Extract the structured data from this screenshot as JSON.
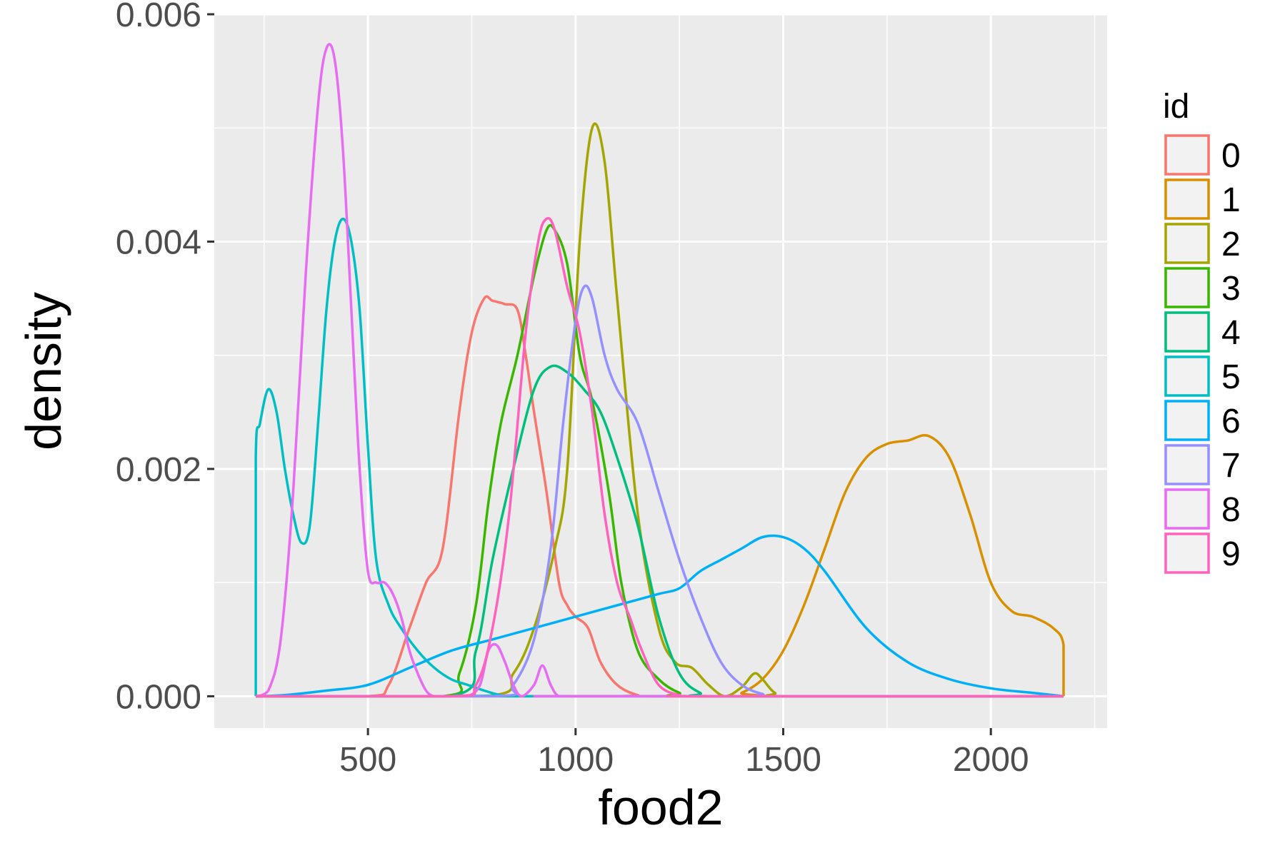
{
  "chart_data": {
    "type": "line",
    "title": "",
    "xlabel": "food2",
    "ylabel": "density",
    "xlim": [
      130,
      2280
    ],
    "ylim": [
      -0.00028,
      0.006
    ],
    "xticks": [
      500,
      1000,
      1500,
      2000
    ],
    "xtick_labels": [
      "500",
      "1000",
      "1500",
      "2000"
    ],
    "yticks": [
      0.0,
      0.002,
      0.004,
      0.006
    ],
    "ytick_labels": [
      "0.000",
      "0.002",
      "0.004",
      "0.006"
    ],
    "grid": true,
    "legend_title": "id",
    "legend_position": "right",
    "series": [
      {
        "name": "0",
        "color": "#F8766D",
        "x": [
          230,
          500,
          550,
          600,
          640,
          680,
          720,
          750,
          780,
          800,
          830,
          860,
          880,
          900,
          930,
          960,
          980,
          1000,
          1030,
          1060,
          1100,
          1150,
          1200,
          2175
        ],
        "y": [
          0,
          0,
          0.0001,
          0.0006,
          0.001,
          0.0013,
          0.0025,
          0.0032,
          0.0035,
          0.00348,
          0.00345,
          0.0034,
          0.003,
          0.0025,
          0.0018,
          0.001,
          0.0008,
          0.0007,
          0.0006,
          0.0003,
          0.0001,
          1e-05,
          0,
          0
        ]
      },
      {
        "name": "1",
        "color": "#D89000",
        "x": [
          230,
          1360,
          1400,
          1450,
          1500,
          1550,
          1600,
          1650,
          1700,
          1750,
          1800,
          1850,
          1900,
          1950,
          2000,
          2050,
          2100,
          2150,
          2175,
          2175
        ],
        "y": [
          0,
          0,
          3e-05,
          0.00015,
          0.0004,
          0.0008,
          0.0013,
          0.0018,
          0.0021,
          0.00222,
          0.00225,
          0.00229,
          0.0021,
          0.0016,
          0.001,
          0.00075,
          0.0007,
          0.0006,
          0.00045,
          0
        ]
      },
      {
        "name": "2",
        "color": "#A3A500",
        "x": [
          230,
          780,
          850,
          900,
          950,
          980,
          1010,
          1040,
          1070,
          1100,
          1150,
          1200,
          1240,
          1280,
          1320,
          1360,
          1400,
          1430,
          1450,
          1480,
          1520,
          2175
        ],
        "y": [
          0,
          0,
          0.0002,
          0.0006,
          0.0013,
          0.002,
          0.004,
          0.005,
          0.0047,
          0.0035,
          0.0016,
          0.0006,
          0.0003,
          0.00025,
          0.0001,
          0,
          8e-05,
          0.0002,
          0.00015,
          3e-05,
          0,
          0
        ]
      },
      {
        "name": "3",
        "color": "#39B600",
        "x": [
          230,
          680,
          720,
          760,
          790,
          820,
          860,
          900,
          930,
          950,
          980,
          1010,
          1040,
          1080,
          1110,
          1150,
          1200,
          1250,
          1300,
          2175
        ],
        "y": [
          0,
          0,
          0.0002,
          0.0008,
          0.0017,
          0.0024,
          0.003,
          0.0037,
          0.0041,
          0.0041,
          0.0038,
          0.003,
          0.0026,
          0.0018,
          0.001,
          0.0004,
          0.00015,
          3e-05,
          0,
          0
        ]
      },
      {
        "name": "4",
        "color": "#00BF7D",
        "x": [
          230,
          700,
          760,
          800,
          850,
          900,
          940,
          980,
          1020,
          1060,
          1100,
          1150,
          1200,
          1250,
          1300,
          1350,
          2175
        ],
        "y": [
          0,
          0,
          0.0004,
          0.0012,
          0.002,
          0.0027,
          0.0029,
          0.00285,
          0.0027,
          0.0025,
          0.0021,
          0.0015,
          0.0007,
          0.0002,
          3e-05,
          0,
          0
        ]
      },
      {
        "name": "5",
        "color": "#00BFC4",
        "x": [
          230,
          230,
          240,
          260,
          280,
          300,
          320,
          340,
          360,
          380,
          400,
          420,
          440,
          460,
          480,
          500,
          520,
          550,
          580,
          620,
          660,
          700,
          740,
          780,
          820,
          870,
          2175
        ],
        "y": [
          0,
          0.0021,
          0.0024,
          0.0027,
          0.0025,
          0.002,
          0.0016,
          0.00135,
          0.0015,
          0.0024,
          0.0034,
          0.004,
          0.0042,
          0.004,
          0.0034,
          0.0022,
          0.0012,
          0.0008,
          0.0006,
          0.0004,
          0.00025,
          0.00015,
          0.0001,
          5e-05,
          1e-05,
          0,
          0
        ]
      },
      {
        "name": "6",
        "color": "#00B0F6",
        "x": [
          230,
          300,
          400,
          500,
          600,
          700,
          800,
          900,
          1000,
          1100,
          1200,
          1250,
          1300,
          1350,
          1400,
          1450,
          1500,
          1550,
          1600,
          1700,
          1800,
          1900,
          2000,
          2100,
          2175
        ],
        "y": [
          0,
          1e-05,
          5e-05,
          0.0001,
          0.00025,
          0.0004,
          0.0005,
          0.0006,
          0.0007,
          0.0008,
          0.0009,
          0.00095,
          0.0011,
          0.0012,
          0.0013,
          0.0014,
          0.0014,
          0.0013,
          0.0011,
          0.0006,
          0.0003,
          0.00015,
          7e-05,
          3e-05,
          0
        ]
      },
      {
        "name": "7",
        "color": "#9590FF",
        "x": [
          230,
          800,
          850,
          900,
          940,
          970,
          1000,
          1020,
          1040,
          1070,
          1100,
          1150,
          1200,
          1250,
          1300,
          1350,
          1400,
          1450,
          1500,
          2175
        ],
        "y": [
          0,
          0,
          0.0001,
          0.0005,
          0.0013,
          0.0024,
          0.0033,
          0.0036,
          0.0035,
          0.003,
          0.0027,
          0.0024,
          0.0018,
          0.0012,
          0.0007,
          0.0003,
          0.0001,
          2e-05,
          0,
          0
        ]
      },
      {
        "name": "8",
        "color": "#E76BF3",
        "x": [
          230,
          260,
          290,
          320,
          350,
          380,
          400,
          420,
          440,
          460,
          480,
          500,
          520,
          540,
          560,
          580,
          600,
          620,
          640,
          660,
          700,
          740,
          770,
          790,
          810,
          830,
          850,
          870,
          900,
          920,
          940,
          960,
          1000,
          2175
        ],
        "y": [
          0,
          5e-05,
          0.0005,
          0.0018,
          0.0037,
          0.0052,
          0.0057,
          0.0056,
          0.0048,
          0.0034,
          0.002,
          0.0011,
          0.001,
          0.001,
          0.0009,
          0.0007,
          0.0004,
          0.0002,
          5e-05,
          0,
          0,
          0,
          0.0001,
          0.0004,
          0.00045,
          0.0003,
          0.0001,
          0,
          0.0001,
          0.00027,
          0.0001,
          0,
          0,
          0
        ]
      },
      {
        "name": "9",
        "color": "#FF62BC",
        "x": [
          230,
          700,
          760,
          800,
          840,
          880,
          910,
          930,
          950,
          980,
          1010,
          1040,
          1070,
          1100,
          1130,
          1160,
          1200,
          1250,
          1300,
          2175
        ],
        "y": [
          0,
          0,
          0.0001,
          0.0006,
          0.0016,
          0.0032,
          0.004,
          0.0042,
          0.0041,
          0.0036,
          0.0032,
          0.0025,
          0.0016,
          0.001,
          0.0007,
          0.0004,
          0.0001,
          1e-05,
          0,
          0
        ]
      }
    ]
  }
}
